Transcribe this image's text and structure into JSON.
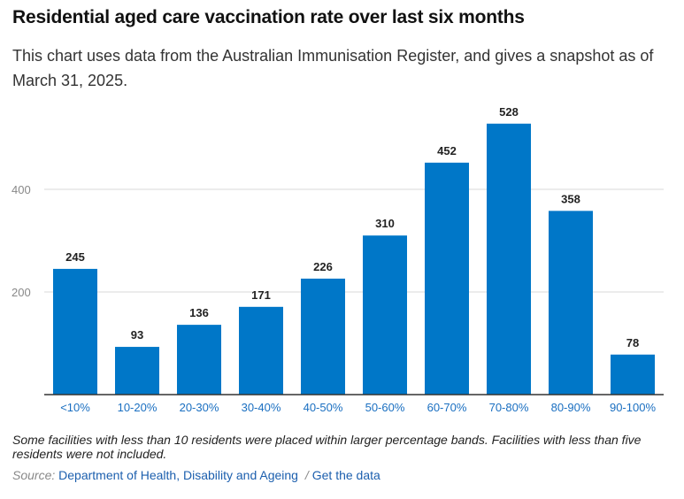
{
  "header": {
    "title": "Residential aged care vaccination rate over last six months",
    "subtitle": "This chart uses data from the Australian Immunisation Register, and gives a snapshot as of March 31, 2025."
  },
  "chart_data": {
    "type": "bar",
    "categories": [
      "<10%",
      "10-20%",
      "20-30%",
      "30-40%",
      "40-50%",
      "50-60%",
      "60-70%",
      "70-80%",
      "80-90%",
      "90-100%"
    ],
    "values": [
      245,
      93,
      136,
      171,
      226,
      310,
      452,
      528,
      358,
      78
    ],
    "title": "Residential aged care vaccination rate over last six months",
    "xlabel": "",
    "ylabel": "",
    "ylim": [
      0,
      560
    ],
    "yticks": [
      200,
      400
    ],
    "grid": true,
    "colors": {
      "bar": "#0077c8",
      "xtick": "#1a6fc1",
      "ytick": "#888888",
      "grid": "#d9d9d9",
      "axis": "#333333"
    }
  },
  "footer": {
    "note": "Some facilities with less than 10 residents were placed within larger percentage bands. Facilities with less than five residents were not included.",
    "source_label": "Source:",
    "source_link": "Department of Health, Disability and Ageing",
    "separator": "/",
    "data_link": "Get the data"
  }
}
